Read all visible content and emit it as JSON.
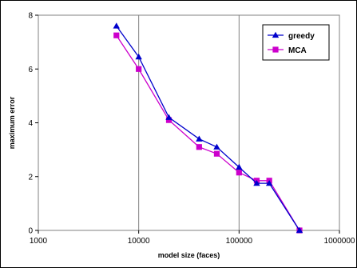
{
  "chart_data": {
    "type": "line",
    "title": "",
    "xlabel": "model size (faces)",
    "ylabel": "maximum error",
    "xscale": "log",
    "xlim": [
      1000,
      1000000
    ],
    "ylim": [
      0,
      8
    ],
    "xticks": [
      1000,
      10000,
      100000,
      1000000
    ],
    "xtick_labels": [
      "1000",
      "10000",
      "100000",
      "1000000"
    ],
    "yticks": [
      0,
      2,
      4,
      6,
      8
    ],
    "ytick_labels": [
      "0",
      "2",
      "4",
      "6",
      "8"
    ],
    "grid": "vertical",
    "legend_position": "top-right",
    "series": [
      {
        "name": "greedy",
        "color": "#0000cc",
        "marker": "triangle",
        "x": [
          6000,
          10000,
          20000,
          40000,
          60000,
          100000,
          150000,
          200000,
          400000
        ],
        "y": [
          7.6,
          6.45,
          4.2,
          3.4,
          3.1,
          2.35,
          1.75,
          1.75,
          0.0
        ]
      },
      {
        "name": "MCA",
        "color": "#cc00cc",
        "marker": "square",
        "x": [
          6000,
          10000,
          20000,
          40000,
          60000,
          100000,
          150000,
          200000,
          400000
        ],
        "y": [
          7.25,
          6.0,
          4.1,
          3.1,
          2.85,
          2.15,
          1.85,
          1.85,
          0.0
        ]
      }
    ]
  }
}
